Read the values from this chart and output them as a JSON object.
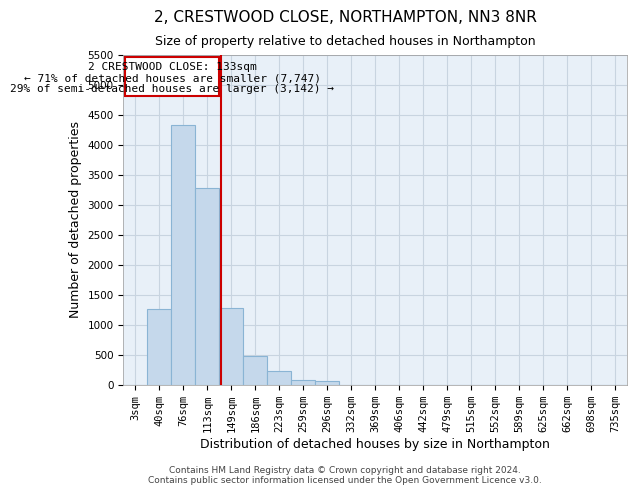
{
  "title": "2, CRESTWOOD CLOSE, NORTHAMPTON, NN3 8NR",
  "subtitle": "Size of property relative to detached houses in Northampton",
  "xlabel": "Distribution of detached houses by size in Northampton",
  "ylabel": "Number of detached properties",
  "footer_line1": "Contains HM Land Registry data © Crown copyright and database right 2024.",
  "footer_line2": "Contains public sector information licensed under the Open Government Licence v3.0.",
  "annotation_line1": "2 CRESTWOOD CLOSE: 133sqm",
  "annotation_line2": "← 71% of detached houses are smaller (7,747)",
  "annotation_line3": "29% of semi-detached houses are larger (3,142) →",
  "bar_color": "#c5d8eb",
  "bar_edge_color": "#8ab4d4",
  "vline_color": "#cc0000",
  "categories": [
    "3sqm",
    "40sqm",
    "76sqm",
    "113sqm",
    "149sqm",
    "186sqm",
    "223sqm",
    "259sqm",
    "296sqm",
    "332sqm",
    "369sqm",
    "406sqm",
    "442sqm",
    "479sqm",
    "515sqm",
    "552sqm",
    "589sqm",
    "625sqm",
    "662sqm",
    "698sqm",
    "735sqm"
  ],
  "values": [
    0,
    1270,
    4340,
    3290,
    1280,
    480,
    230,
    90,
    65,
    0,
    0,
    0,
    0,
    0,
    0,
    0,
    0,
    0,
    0,
    0,
    0
  ],
  "ylim": [
    0,
    5500
  ],
  "yticks": [
    0,
    500,
    1000,
    1500,
    2000,
    2500,
    3000,
    3500,
    4000,
    4500,
    5000,
    5500
  ],
  "background_color": "#ffffff",
  "grid_color": "#c8d4e0",
  "title_fontsize": 11,
  "subtitle_fontsize": 9,
  "tick_fontsize": 7.5,
  "ylabel_fontsize": 9,
  "xlabel_fontsize": 9,
  "annotation_fontsize": 8,
  "footer_fontsize": 6.5
}
